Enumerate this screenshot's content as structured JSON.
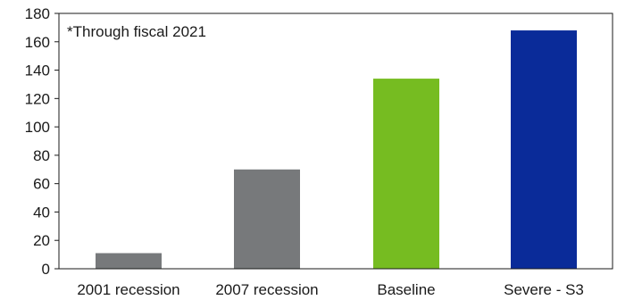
{
  "chart_data": {
    "type": "bar",
    "categories": [
      "2001 recession",
      "2007 recession",
      "Baseline",
      "Severe - S3"
    ],
    "values": [
      11,
      70,
      134,
      168
    ],
    "colors": [
      "#77797b",
      "#77797b",
      "#76bc21",
      "#0a2b99"
    ],
    "annotation": "*Through fiscal 2021",
    "ylim": [
      0,
      180
    ],
    "yticks": [
      0,
      20,
      40,
      60,
      80,
      100,
      120,
      140,
      160,
      180
    ],
    "grid": false,
    "legend": "none"
  }
}
